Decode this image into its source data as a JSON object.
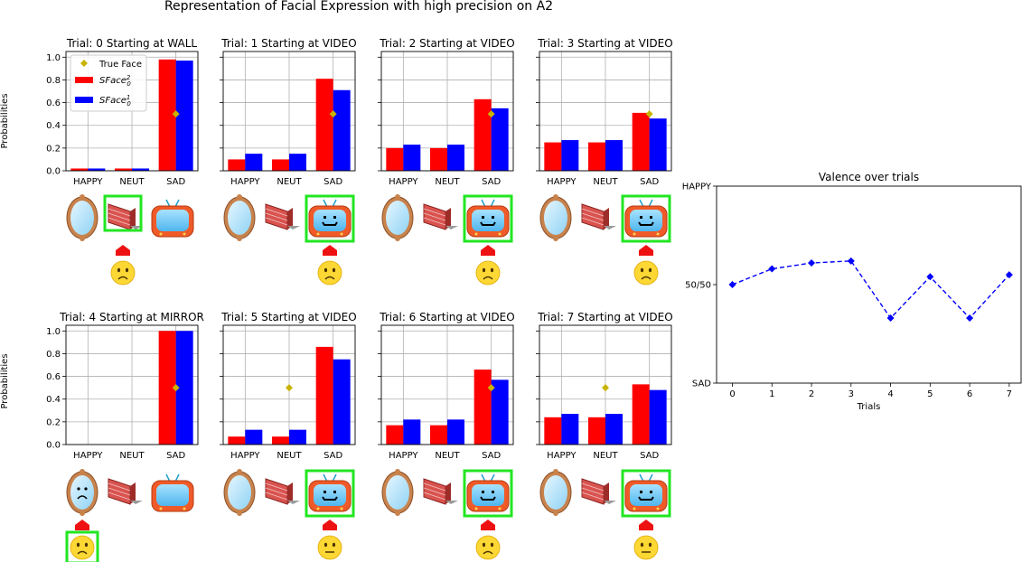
{
  "figure": {
    "title": "Representation of Facial Expression with high precision on A2",
    "ylabel": "Probabilities"
  },
  "legend": {
    "true_face": "True Face",
    "series_red": "SFace",
    "series_red_sup": "2",
    "series_red_sub": "0",
    "series_blue": "SFace",
    "series_blue_sup": "1",
    "series_blue_sub": "0"
  },
  "colors": {
    "red": "#ff0000",
    "blue": "#0000ff",
    "true_face": "#c8b400",
    "highlight": "#22e622",
    "arrow": "#ee1111",
    "face_yellow": "#fdd835"
  },
  "chart_data": [
    {
      "type": "bar",
      "title": "Trial: 0 Starting at WALL",
      "categories": [
        "HAPPY",
        "NEUT",
        "SAD"
      ],
      "series": [
        {
          "name": "SFace_0^2",
          "values": [
            0.02,
            0.02,
            0.98
          ]
        },
        {
          "name": "SFace_0^1",
          "values": [
            0.02,
            0.02,
            0.97
          ]
        }
      ],
      "true_face": {
        "category": "SAD",
        "value": 0.5
      },
      "ylim": [
        0,
        1.05
      ],
      "yticks": [
        "0.0",
        "0.2",
        "0.4",
        "0.6",
        "0.8",
        "1.0"
      ],
      "grid": true,
      "legend": "upper-left",
      "scene": {
        "start": "wall",
        "selected": "wall",
        "arrow_under": "wall",
        "expression": "sad",
        "face_highlight": false
      }
    },
    {
      "type": "bar",
      "title": "Trial: 1 Starting at VIDEO",
      "categories": [
        "HAPPY",
        "NEUT",
        "SAD"
      ],
      "series": [
        {
          "name": "SFace_0^2",
          "values": [
            0.1,
            0.1,
            0.81
          ]
        },
        {
          "name": "SFace_0^1",
          "values": [
            0.15,
            0.15,
            0.71
          ]
        }
      ],
      "true_face": {
        "category": "SAD",
        "value": 0.5
      },
      "ylim": [
        0,
        1.05
      ],
      "grid": true,
      "scene": {
        "start": "video",
        "selected": "video",
        "arrow_under": "video",
        "expression": "sad",
        "face_highlight": false
      }
    },
    {
      "type": "bar",
      "title": "Trial: 2 Starting at VIDEO",
      "categories": [
        "HAPPY",
        "NEUT",
        "SAD"
      ],
      "series": [
        {
          "name": "SFace_0^2",
          "values": [
            0.2,
            0.2,
            0.63
          ]
        },
        {
          "name": "SFace_0^1",
          "values": [
            0.23,
            0.23,
            0.55
          ]
        }
      ],
      "true_face": {
        "category": "SAD",
        "value": 0.5
      },
      "ylim": [
        0,
        1.05
      ],
      "grid": true,
      "scene": {
        "start": "video",
        "selected": "video",
        "arrow_under": "video",
        "expression": "sad",
        "face_highlight": false
      }
    },
    {
      "type": "bar",
      "title": "Trial: 3 Starting at VIDEO",
      "categories": [
        "HAPPY",
        "NEUT",
        "SAD"
      ],
      "series": [
        {
          "name": "SFace_0^2",
          "values": [
            0.25,
            0.25,
            0.51
          ]
        },
        {
          "name": "SFace_0^1",
          "values": [
            0.27,
            0.27,
            0.46
          ]
        }
      ],
      "true_face": {
        "category": "SAD",
        "value": 0.5
      },
      "ylim": [
        0,
        1.05
      ],
      "grid": true,
      "scene": {
        "start": "video",
        "selected": "video",
        "arrow_under": "video",
        "expression": "sad",
        "face_highlight": false
      }
    },
    {
      "type": "bar",
      "title": "Trial: 4 Starting at MIRROR",
      "categories": [
        "HAPPY",
        "NEUT",
        "SAD"
      ],
      "series": [
        {
          "name": "SFace_0^2",
          "values": [
            0.0,
            0.0,
            1.0
          ]
        },
        {
          "name": "SFace_0^1",
          "values": [
            0.0,
            0.0,
            1.0
          ]
        }
      ],
      "true_face": {
        "category": "SAD",
        "value": 0.5
      },
      "ylim": [
        0,
        1.05
      ],
      "yticks": [
        "0.0",
        "0.2",
        "0.4",
        "0.6",
        "0.8",
        "1.0"
      ],
      "grid": true,
      "scene": {
        "start": "mirror",
        "selected": "none",
        "arrow_under": "mirror",
        "expression": "sad",
        "mirror_sad": true,
        "face_highlight": true
      }
    },
    {
      "type": "bar",
      "title": "Trial: 5 Starting at VIDEO",
      "categories": [
        "HAPPY",
        "NEUT",
        "SAD"
      ],
      "series": [
        {
          "name": "SFace_0^2",
          "values": [
            0.07,
            0.07,
            0.86
          ]
        },
        {
          "name": "SFace_0^1",
          "values": [
            0.13,
            0.13,
            0.75
          ]
        }
      ],
      "true_face": {
        "category": "NEUT",
        "value": 0.5
      },
      "ylim": [
        0,
        1.05
      ],
      "grid": true,
      "scene": {
        "start": "video",
        "selected": "video",
        "arrow_under": "video",
        "expression": "neutral",
        "face_highlight": false
      }
    },
    {
      "type": "bar",
      "title": "Trial: 6 Starting at VIDEO",
      "categories": [
        "HAPPY",
        "NEUT",
        "SAD"
      ],
      "series": [
        {
          "name": "SFace_0^2",
          "values": [
            0.17,
            0.17,
            0.66
          ]
        },
        {
          "name": "SFace_0^1",
          "values": [
            0.22,
            0.22,
            0.57
          ]
        }
      ],
      "true_face": {
        "category": "SAD",
        "value": 0.5
      },
      "ylim": [
        0,
        1.05
      ],
      "grid": true,
      "scene": {
        "start": "video",
        "selected": "video",
        "arrow_under": "video",
        "expression": "sad",
        "face_highlight": false
      }
    },
    {
      "type": "bar",
      "title": "Trial: 7 Starting at VIDEO",
      "categories": [
        "HAPPY",
        "NEUT",
        "SAD"
      ],
      "series": [
        {
          "name": "SFace_0^2",
          "values": [
            0.24,
            0.24,
            0.53
          ]
        },
        {
          "name": "SFace_0^1",
          "values": [
            0.27,
            0.27,
            0.48
          ]
        }
      ],
      "true_face": {
        "category": "NEUT",
        "value": 0.5
      },
      "ylim": [
        0,
        1.05
      ],
      "grid": true,
      "scene": {
        "start": "video",
        "selected": "video",
        "arrow_under": "video",
        "expression": "neutral",
        "face_highlight": false
      }
    },
    {
      "type": "line",
      "title": "Valence over trials",
      "xlabel": "Trials",
      "x": [
        0,
        1,
        2,
        3,
        4,
        5,
        6,
        7
      ],
      "y": [
        0.0,
        0.08,
        0.11,
        0.12,
        -0.17,
        0.04,
        -0.17,
        0.05
      ],
      "ylim": [
        -0.5,
        0.5
      ],
      "yticks": [
        {
          "value": 0.5,
          "label": "HAPPY"
        },
        {
          "value": 0.0,
          "label": "50/50"
        },
        {
          "value": -0.5,
          "label": "SAD"
        }
      ],
      "color": "#0000ff",
      "style": "dashed",
      "marker": "diamond"
    }
  ]
}
